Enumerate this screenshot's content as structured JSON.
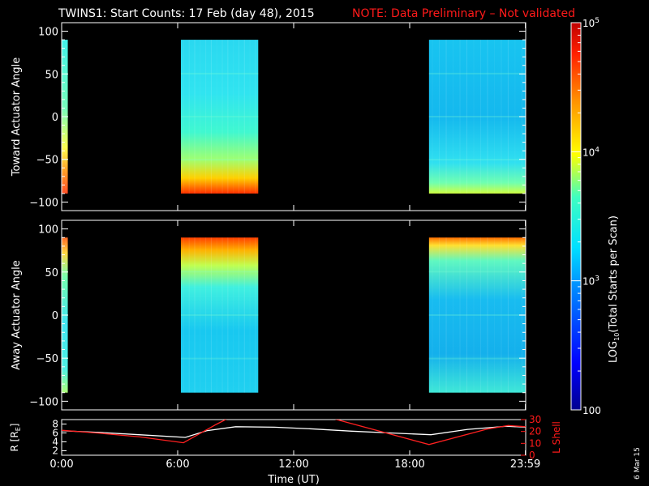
{
  "header": {
    "title": "TWINS1: Start Counts: 17 Feb (day  48), 2015",
    "note": "NOTE: Data Preliminary – Not validated"
  },
  "colors": {
    "background": "#000000",
    "axes": "#ffffff",
    "note": "#ff1a1a",
    "r_line": "#ffffff",
    "lshell_line": "#ff2020"
  },
  "side_stamp": "6 Mar 15",
  "chart_data": [
    {
      "type": "heatmap",
      "ylabel": "Toward Actuator Angle",
      "ylim": [
        -110,
        110
      ],
      "yticks": [
        100,
        50,
        0,
        -50,
        -100
      ],
      "ytick_labels": [
        "100",
        "50",
        "0",
        "−50",
        "−100"
      ],
      "xlim_hours": [
        0,
        24
      ],
      "data_blocks_ut": [
        {
          "start": "0:00",
          "end": "0:19"
        },
        {
          "start": "6:10",
          "end": "10:10"
        },
        {
          "start": "19:00",
          "end": "23:59"
        }
      ],
      "angle_range": [
        -90,
        90
      ]
    },
    {
      "type": "heatmap",
      "ylabel": "Away Actuator Angle",
      "ylim": [
        -110,
        110
      ],
      "yticks": [
        100,
        50,
        0,
        -50,
        -100
      ],
      "ytick_labels": [
        "100",
        "50",
        "0",
        "−50",
        "−100"
      ],
      "xlim_hours": [
        0,
        24
      ],
      "data_blocks_ut": [
        {
          "start": "0:00",
          "end": "0:19"
        },
        {
          "start": "6:10",
          "end": "10:10"
        },
        {
          "start": "19:00",
          "end": "23:59"
        }
      ],
      "angle_range": [
        -90,
        90
      ]
    },
    {
      "type": "line",
      "ylabel": "R [R",
      "ylabel_sub": "E",
      "ylabel_close": "]",
      "ylim": [
        1,
        9
      ],
      "yticks": [
        2,
        4,
        6,
        8
      ],
      "ytick_labels": [
        "2",
        "4",
        "6",
        "8"
      ],
      "right_label": "L Shell",
      "right_ylim": [
        0,
        30
      ],
      "right_yticks": [
        0,
        10,
        20,
        30
      ],
      "right_ytick_labels": [
        "0",
        "10",
        "20",
        "30"
      ],
      "xlabel": "Time (UT)",
      "x_tick_hours": [
        0,
        6,
        12,
        18,
        23.983
      ],
      "x_tick_labels": [
        "0:00",
        "6:00",
        "12:00",
        "18:00",
        "23:59"
      ],
      "series": [
        {
          "axis": "left",
          "x_hours": [
            0,
            2,
            4,
            6.4,
            7.5,
            9,
            11,
            13,
            15,
            17,
            19.1,
            21,
            23,
            24
          ],
          "values": [
            6.5,
            6.1,
            5.6,
            5.0,
            6.5,
            7.4,
            7.3,
            6.9,
            6.4,
            6.0,
            5.6,
            6.8,
            7.5,
            7.3
          ]
        },
        {
          "axis": "right",
          "x_hours": [
            0,
            2,
            4,
            6.3,
            8.0,
            8.6,
            14.0,
            19.0,
            22.0,
            23.1,
            24
          ],
          "values": [
            21,
            18.5,
            15.5,
            10.5,
            26,
            31,
            31,
            9,
            22,
            25,
            24
          ]
        }
      ]
    }
  ],
  "colorbar": {
    "label_prefix": "LOG",
    "label_sub": "10",
    "label_suffix": "(Total Starts per Scan)",
    "scale": "log",
    "range": [
      100,
      100000
    ],
    "tick_base": "10",
    "ticks": [
      {
        "value": 100,
        "label": "100"
      },
      {
        "value": 1000,
        "exp": "3"
      },
      {
        "value": 10000,
        "exp": "4"
      },
      {
        "value": 100000,
        "exp": "5"
      }
    ]
  }
}
